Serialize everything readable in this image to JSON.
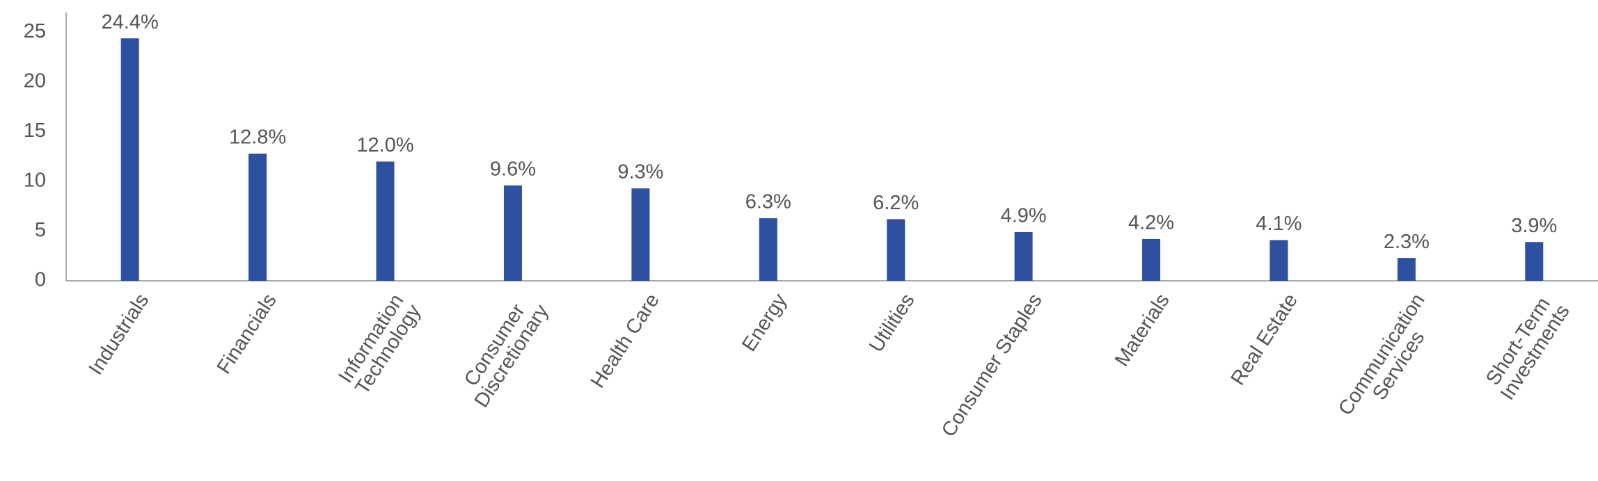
{
  "chart_data": {
    "type": "bar",
    "categories": [
      "Industrials",
      "Financials",
      "Information\nTechnology",
      "Consumer\nDiscretionary",
      "Health Care",
      "Energy",
      "Utilities",
      "Consumer Staples",
      "Materials",
      "Real Estate",
      "Communication\nServices",
      "Short-Term\nInvestments"
    ],
    "values": [
      24.4,
      12.8,
      12.0,
      9.6,
      9.3,
      6.3,
      6.2,
      4.9,
      4.2,
      4.1,
      2.3,
      3.9
    ],
    "value_labels": [
      "24.4%",
      "12.8%",
      "12.0%",
      "9.6%",
      "9.3%",
      "6.3%",
      "6.2%",
      "4.9%",
      "4.2%",
      "4.1%",
      "2.3%",
      "3.9%"
    ],
    "color": "#2e50a0",
    "ylim": [
      0,
      27
    ],
    "yticks": [
      0,
      5,
      10,
      15,
      20,
      25
    ],
    "grid": false
  }
}
